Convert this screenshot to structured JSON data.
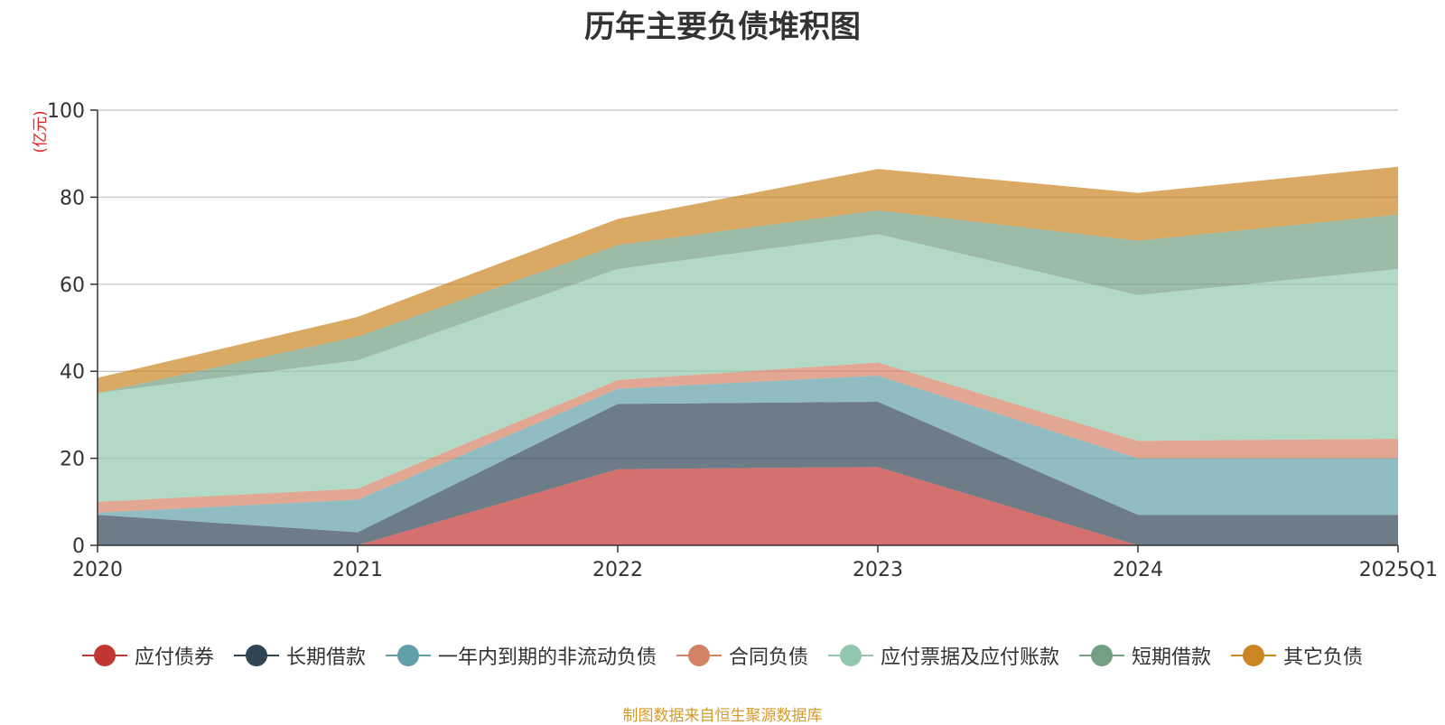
{
  "chart_data": {
    "type": "area",
    "stacked": true,
    "title": "历年主要负债堆积图",
    "unit_label": "(亿元)",
    "categories": [
      "2020",
      "2021",
      "2022",
      "2023",
      "2024",
      "2025Q1"
    ],
    "ylim": [
      0,
      100
    ],
    "yticks": [
      0,
      20,
      40,
      60,
      80,
      100
    ],
    "grid": true,
    "legend_position": "bottom",
    "series": [
      {
        "name": "应付债券",
        "color": "#c23531",
        "values": [
          0,
          0,
          17.5,
          18,
          0,
          0
        ]
      },
      {
        "name": "长期借款",
        "color": "#2f4554",
        "values": [
          7,
          3,
          15,
          15,
          7,
          7
        ]
      },
      {
        "name": "一年内到期的非流动负债",
        "color": "#61a0a8",
        "values": [
          0.5,
          7.5,
          3.5,
          6,
          13,
          13
        ]
      },
      {
        "name": "合同负债",
        "color": "#d48265",
        "values": [
          2.5,
          2.5,
          2,
          3,
          4,
          4.5
        ]
      },
      {
        "name": "应付票据及应付账款",
        "color": "#91c7ae",
        "values": [
          25,
          29.5,
          25.5,
          29.5,
          33.5,
          39
        ]
      },
      {
        "name": "短期借款",
        "color": "#749f83",
        "values": [
          0,
          5.5,
          5.5,
          5.5,
          12.5,
          12.5
        ]
      },
      {
        "name": "其它负债",
        "color": "#ca8622",
        "values": [
          3.5,
          4.5,
          6,
          9.5,
          11,
          11
        ]
      }
    ]
  },
  "footer_note": "制图数据来自恒生聚源数据库"
}
